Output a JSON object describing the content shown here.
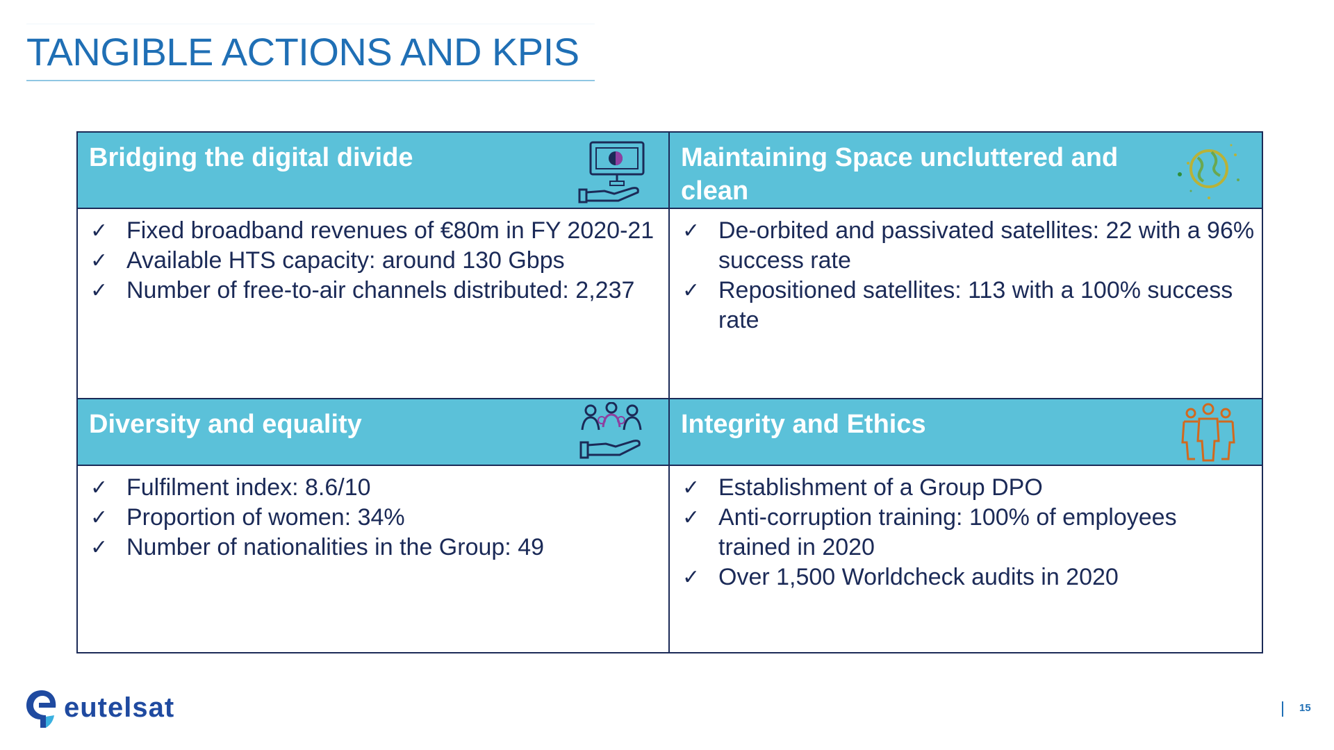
{
  "title": "TANGIBLE ACTIONS AND KPIS",
  "sections": [
    {
      "heading": "Bridging the digital divide",
      "icon": "screen-hand-icon",
      "items": [
        "Fixed broadband revenues of €80m in FY 2020-21",
        "Available HTS capacity: around 130 Gbps",
        "Number of free-to-air channels distributed: 2,237"
      ]
    },
    {
      "heading": "Maintaining Space uncluttered and clean",
      "icon": "globe-icon",
      "items": [
        "De-orbited and passivated satellites: 22 with a 96% success rate",
        "Repositioned satellites: 113 with a 100% success rate"
      ]
    },
    {
      "heading": "Diversity and equality",
      "icon": "people-hand-icon",
      "items": [
        "Fulfilment index: 8.6/10",
        "Proportion of women: 34%",
        "Number of nationalities in the Group: 49"
      ]
    },
    {
      "heading": "Integrity and Ethics",
      "icon": "team-icon",
      "items": [
        "Establishment of a Group DPO",
        "Anti-corruption training: 100% of employees trained in 2020",
        "Over 1,500 Worldcheck audits in 2020"
      ]
    }
  ],
  "check_glyph": "✓",
  "footer": {
    "logo_text": "eutelsat",
    "page_number": "15"
  },
  "colors": {
    "title": "#1f6fb5",
    "header_fill": "#5bc1d9",
    "border": "#1b2a57",
    "text": "#1b2a57",
    "brand": "#1f4aa0"
  }
}
